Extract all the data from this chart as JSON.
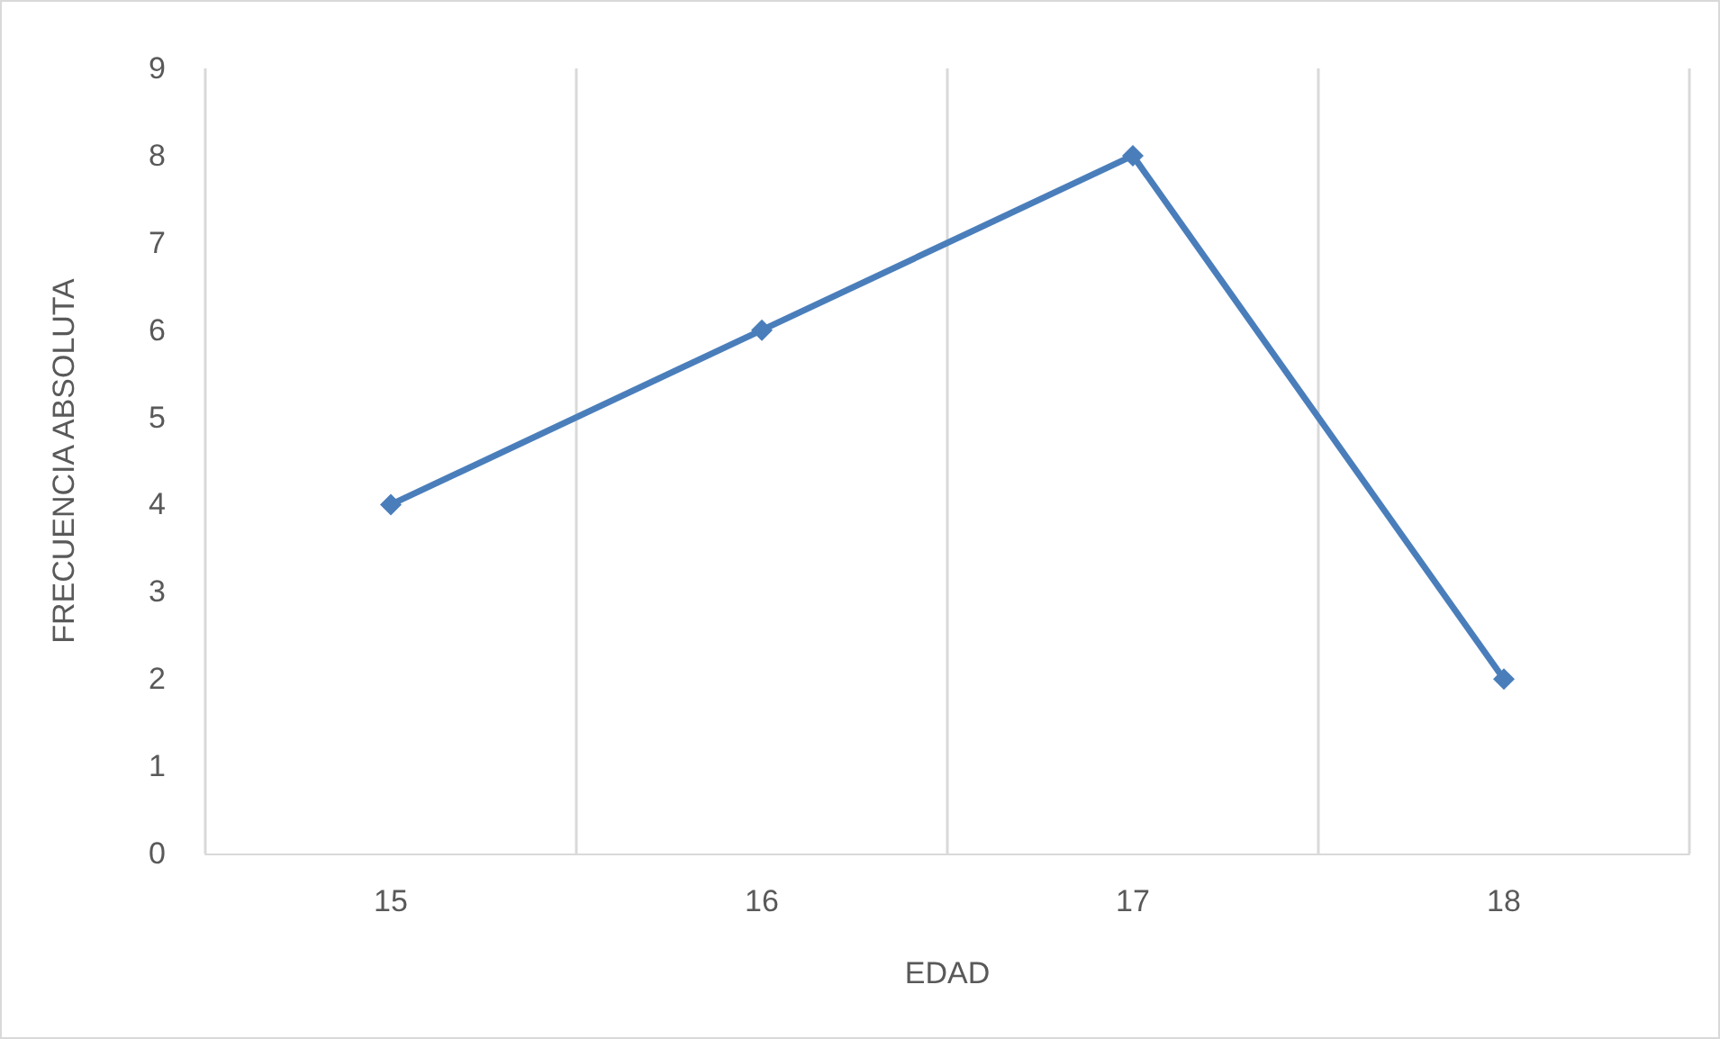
{
  "chart_data": {
    "type": "line",
    "xlabel": "EDAD",
    "ylabel": "FRECUENCIA ABSOLUTA",
    "categories": [
      "15",
      "16",
      "17",
      "18"
    ],
    "series": [
      {
        "color": "#4a7ebb",
        "values": [
          4,
          6,
          8,
          2
        ]
      }
    ],
    "ylim": [
      0,
      9
    ],
    "yticks": [
      0,
      1,
      2,
      3,
      4,
      5,
      6,
      7,
      8,
      9
    ],
    "grid": "x",
    "marker": "diamond",
    "line_style": "solid"
  }
}
